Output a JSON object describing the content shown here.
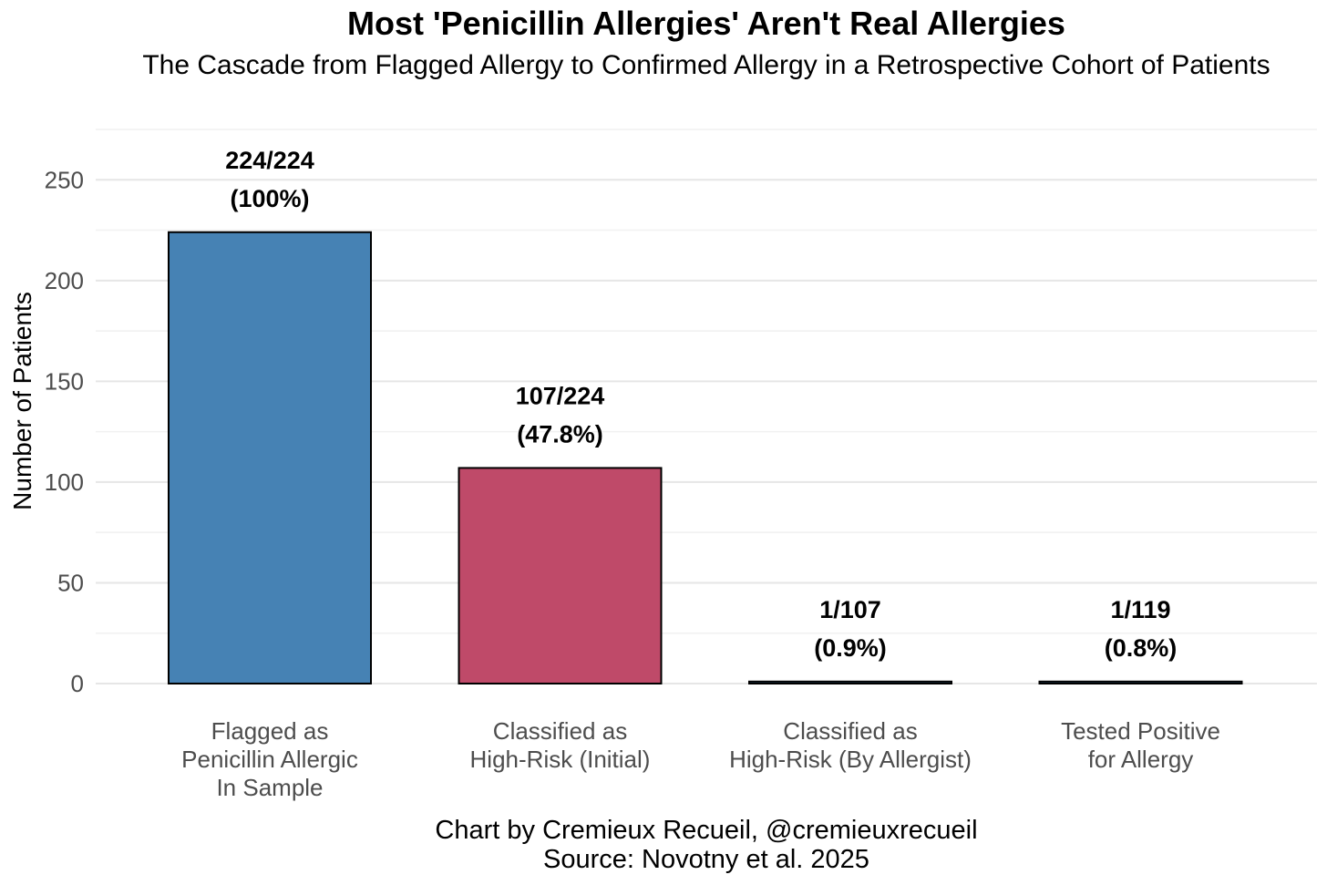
{
  "chart_data": {
    "type": "bar",
    "title": "Most 'Penicillin Allergies' Aren't Real Allergies",
    "subtitle": "The Cascade from Flagged Allergy to Confirmed Allergy in a Retrospective Cohort of Patients",
    "xlabel": "",
    "ylabel": "Number of Patients",
    "ylim": [
      0,
      275
    ],
    "yticks": [
      0,
      50,
      100,
      150,
      200,
      250
    ],
    "grid": true,
    "categories": [
      [
        "Flagged as",
        "Penicillin Allergic",
        "In Sample"
      ],
      [
        "Classified as",
        "High-Risk (Initial)"
      ],
      [
        "Classified as",
        "High-Risk (By Allergist)"
      ],
      [
        "Tested Positive",
        "for Allergy"
      ]
    ],
    "values": [
      224,
      107,
      1,
      1
    ],
    "labels": [
      [
        "224/224",
        "(100%)"
      ],
      [
        "107/224",
        "(47.8%)"
      ],
      [
        "1/107",
        "(0.9%)"
      ],
      [
        "1/119",
        "(0.8%)"
      ]
    ],
    "colors": [
      "#4682B4",
      "#BF4A69",
      "#4682B4",
      "#4682B4"
    ],
    "caption": [
      "Chart by Cremieux Recueil, @cremieuxrecueil",
      "Source: Novotny et al. 2025"
    ]
  }
}
